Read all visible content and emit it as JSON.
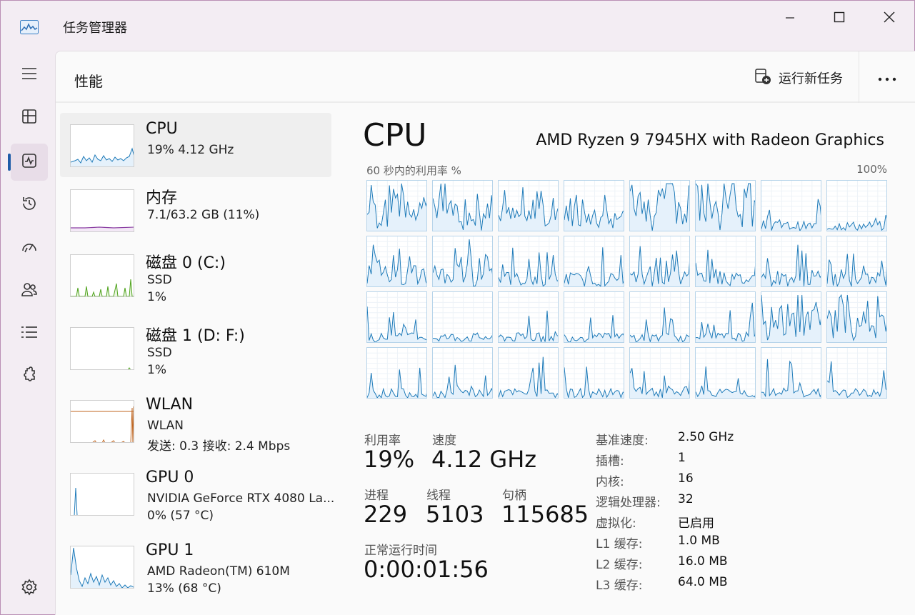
{
  "window": {
    "title": "任务管理器",
    "min_icon": "minimize-icon",
    "max_icon": "maximize-icon",
    "close_icon": "close-icon"
  },
  "nav": {
    "items": [
      {
        "name": "hamburger-menu",
        "icon": "hamburger-icon"
      },
      {
        "name": "processes",
        "icon": "processes-icon"
      },
      {
        "name": "performance",
        "icon": "performance-icon",
        "active": true
      },
      {
        "name": "app-history",
        "icon": "history-icon"
      },
      {
        "name": "startup-apps",
        "icon": "speedometer-icon"
      },
      {
        "name": "users",
        "icon": "users-icon"
      },
      {
        "name": "details",
        "icon": "list-icon"
      },
      {
        "name": "services",
        "icon": "puzzle-icon"
      },
      {
        "name": "settings",
        "icon": "gear-icon"
      }
    ]
  },
  "header": {
    "title": "性能",
    "run_task_label": "运行新任务",
    "more_icon": "more-icon"
  },
  "resources": [
    {
      "name": "CPU",
      "line2": "19%  4.12 GHz",
      "line3": "",
      "color": "#1f7bb9"
    },
    {
      "name": "内存",
      "line2": "7.1/63.2 GB (11%)",
      "line3": "",
      "color": "#8b3fa3"
    },
    {
      "name": "磁盘 0 (C:)",
      "line2": "SSD",
      "line3": "1%",
      "color": "#4da21a"
    },
    {
      "name": "磁盘 1 (D: F:)",
      "line2": "SSD",
      "line3": "1%",
      "color": "#4da21a"
    },
    {
      "name": "WLAN",
      "line2": "WLAN",
      "line3": "发送: 0.3  接收: 2.4 Mbps",
      "color": "#c0651f"
    },
    {
      "name": "GPU 0",
      "line2": "NVIDIA GeForce RTX 4080 La...",
      "line3": "0%  (57 °C)",
      "color": "#1f7bb9"
    },
    {
      "name": "GPU 1",
      "line2": "AMD Radeon(TM) 610M",
      "line3": "13%  (68 °C)",
      "color": "#1f7bb9"
    }
  ],
  "detail": {
    "title": "CPU",
    "model": "AMD Ryzen 9 7945HX with Radeon Graphics",
    "graph_label": "60 秒内的利用率 %",
    "graph_max": "100%",
    "core_count_grid": 32,
    "stats": {
      "util_label": "利用率",
      "util_value": "19%",
      "speed_label": "速度",
      "speed_value": "4.12 GHz",
      "proc_label": "进程",
      "proc_value": "229",
      "thread_label": "线程",
      "thread_value": "5103",
      "handle_label": "句柄",
      "handle_value": "115685",
      "uptime_label": "正常运行时间",
      "uptime_value": "0:00:01:56"
    },
    "specs": [
      {
        "label": "基准速度:",
        "value": "2.50 GHz"
      },
      {
        "label": "插槽:",
        "value": "1"
      },
      {
        "label": "内核:",
        "value": "16"
      },
      {
        "label": "逻辑处理器:",
        "value": "32"
      },
      {
        "label": "虚拟化:",
        "value": "已启用"
      },
      {
        "label": "L1 缓存:",
        "value": "1.0 MB"
      },
      {
        "label": "L2 缓存:",
        "value": "16.0 MB"
      },
      {
        "label": "L3 缓存:",
        "value": "64.0 MB"
      }
    ]
  },
  "colors": {
    "cpu_line": "#1f7bb9",
    "cpu_fill": "#e5f1fb",
    "accent": "#1d5ca8"
  }
}
